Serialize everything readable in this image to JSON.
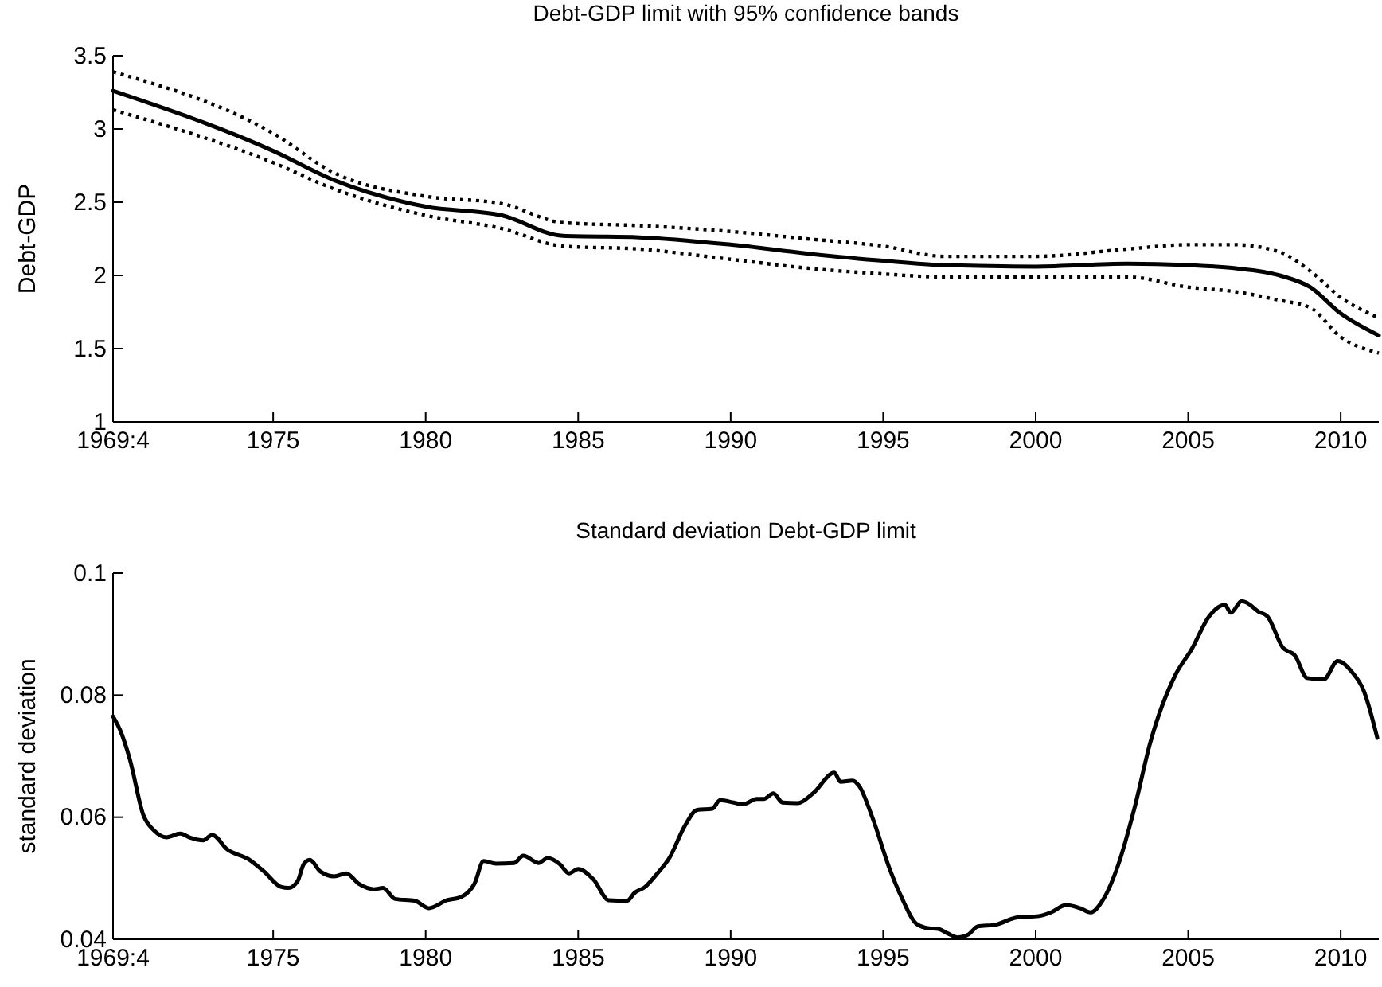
{
  "chart_data": [
    {
      "type": "line",
      "title": "Debt-GDP limit with 95% confidence bands",
      "ylabel": "Debt-GDP",
      "xlim": [
        1969.75,
        2011.25
      ],
      "ylim": [
        1,
        3.5
      ],
      "xticks": [
        {
          "value": 1969.75,
          "label": "1969:4"
        },
        1975,
        1980,
        1985,
        1990,
        1995,
        2000,
        2005,
        2010
      ],
      "yticks": [
        1,
        1.5,
        2,
        2.5,
        3,
        3.5
      ],
      "x": [
        1969.75,
        1975,
        1977,
        1980,
        1982.5,
        1984.5,
        1987,
        1990,
        1992.5,
        1995,
        1997,
        2000,
        2003,
        2005,
        2006.5,
        2008,
        2009,
        2010,
        2011.25
      ],
      "series": [
        {
          "color": "#000000",
          "line_style": "dotted",
          "values": [
            3.39,
            2.97,
            2.7,
            2.54,
            2.49,
            2.36,
            2.34,
            2.3,
            2.25,
            2.2,
            2.13,
            2.13,
            2.18,
            2.21,
            2.21,
            2.16,
            2.03,
            1.85,
            1.71
          ]
        },
        {
          "color": "#000000",
          "line_style": "solid",
          "values": [
            3.26,
            2.85,
            2.65,
            2.47,
            2.41,
            2.27,
            2.26,
            2.21,
            2.15,
            2.1,
            2.07,
            2.06,
            2.08,
            2.07,
            2.05,
            2.0,
            1.92,
            1.74,
            1.59
          ]
        },
        {
          "color": "#000000",
          "line_style": "dotted",
          "values": [
            3.13,
            2.77,
            2.59,
            2.41,
            2.32,
            2.2,
            2.18,
            2.11,
            2.05,
            2.01,
            1.99,
            1.99,
            1.99,
            1.92,
            1.89,
            1.83,
            1.78,
            1.58,
            1.47
          ]
        }
      ]
    },
    {
      "type": "line",
      "title": "Standard deviation Debt-GDP limit",
      "ylabel": "standard deviation",
      "xlim": [
        1969.75,
        2011.25
      ],
      "ylim": [
        0.04,
        0.1
      ],
      "xticks": [
        {
          "value": 1969.75,
          "label": "1969:4"
        },
        1975,
        1980,
        1985,
        1990,
        1995,
        2000,
        2005,
        2010
      ],
      "yticks": [
        0.04,
        0.06,
        0.08,
        0.1
      ],
      "x": [
        1969.75,
        1969.98,
        1970.3,
        1970.74,
        1971.1,
        1971.5,
        1971.95,
        1972.3,
        1972.7,
        1973.0,
        1973.5,
        1974.2,
        1974.7,
        1975.25,
        1975.5,
        1975.8,
        1976.0,
        1976.2,
        1976.55,
        1977.0,
        1977.4,
        1977.8,
        1978.3,
        1978.6,
        1979.0,
        1979.65,
        1980.1,
        1980.7,
        1981.15,
        1981.6,
        1981.9,
        1982.3,
        1982.9,
        1983.2,
        1983.7,
        1984.0,
        1984.4,
        1984.7,
        1985.0,
        1985.5,
        1986.0,
        1986.6,
        1986.85,
        1987.2,
        1987.6,
        1988.0,
        1988.5,
        1988.9,
        1989.4,
        1989.65,
        1990.1,
        1990.4,
        1990.85,
        1991.1,
        1991.4,
        1991.7,
        1992.2,
        1992.7,
        1993.4,
        1993.6,
        1994.0,
        1994.2,
        1994.65,
        1995.2,
        1995.6,
        1996.1,
        1996.5,
        1996.8,
        1997.1,
        1997.45,
        1997.8,
        1998.1,
        1998.7,
        1999.4,
        2000.1,
        2000.5,
        2001.0,
        2001.45,
        2001.8,
        2002.2,
        2002.7,
        2003.25,
        2003.75,
        2004.6,
        2005.1,
        2005.7,
        2006.2,
        2006.4,
        2006.75,
        2006.9,
        2007.3,
        2007.6,
        2008.1,
        2008.5,
        2008.9,
        2009.45,
        2009.9,
        2010.4,
        2010.75,
        2011.2
      ],
      "series": [
        {
          "color": "#000000",
          "line_style": "solid",
          "values": [
            0.0765,
            0.0743,
            0.0695,
            0.0604,
            0.0578,
            0.0567,
            0.0573,
            0.0566,
            0.0562,
            0.0571,
            0.0547,
            0.0531,
            0.0511,
            0.0486,
            0.0484,
            0.0495,
            0.0523,
            0.053,
            0.0511,
            0.0503,
            0.0508,
            0.0491,
            0.0482,
            0.0484,
            0.0466,
            0.0463,
            0.0451,
            0.0464,
            0.0469,
            0.0491,
            0.0528,
            0.0524,
            0.0525,
            0.0537,
            0.0525,
            0.0533,
            0.0523,
            0.0508,
            0.0515,
            0.0498,
            0.0464,
            0.0463,
            0.0476,
            0.0486,
            0.0508,
            0.0534,
            0.0586,
            0.0612,
            0.0614,
            0.0628,
            0.0624,
            0.0621,
            0.063,
            0.063,
            0.0639,
            0.0624,
            0.0623,
            0.0639,
            0.0673,
            0.0658,
            0.066,
            0.0652,
            0.0599,
            0.0517,
            0.0469,
            0.0425,
            0.0418,
            0.0417,
            0.041,
            0.0403,
            0.0408,
            0.0421,
            0.0424,
            0.0436,
            0.0438,
            0.0444,
            0.0456,
            0.0451,
            0.0444,
            0.0464,
            0.0521,
            0.0617,
            0.0721,
            0.0835,
            0.0874,
            0.093,
            0.0948,
            0.0935,
            0.0954,
            0.0952,
            0.0937,
            0.0929,
            0.0878,
            0.0865,
            0.0828,
            0.0826,
            0.0856,
            0.0836,
            0.0808,
            0.073
          ]
        }
      ]
    }
  ]
}
